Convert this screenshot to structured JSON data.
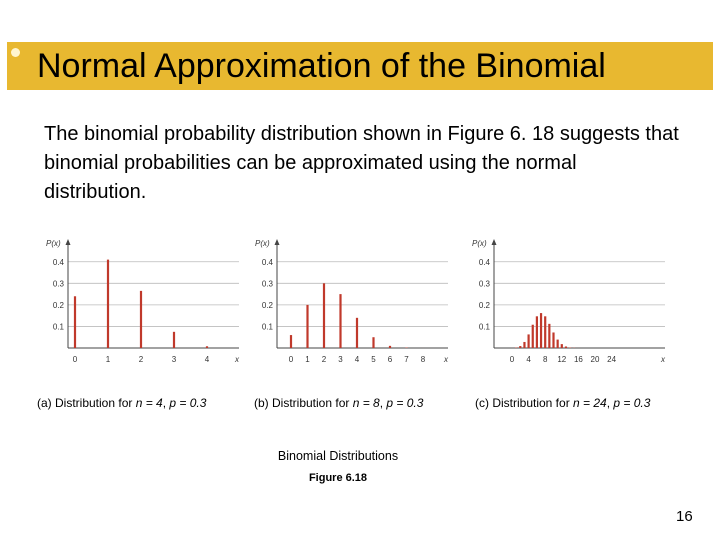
{
  "slide": {
    "title": "Normal Approximation of the Binomial",
    "intro": "The binomial probability distribution shown in Figure 6. 18 suggests that binomial probabilities can be approximated using the normal distribution.",
    "figure_title": "Binomial Distributions",
    "figure_number": "Figure 6.18",
    "page_number": "16",
    "accent_color": "#e8b830"
  },
  "chart_data": [
    {
      "type": "bar",
      "ylabel": "P(x)",
      "xlabel": "x",
      "ylim": [
        0,
        0.45
      ],
      "yticks": [
        "0.1",
        "0.2",
        "0.3",
        "0.4"
      ],
      "x": [
        0,
        1,
        2,
        3,
        4
      ],
      "values": [
        0.24,
        0.41,
        0.265,
        0.075,
        0.008
      ],
      "xticks": [
        "0",
        "1",
        "2",
        "3",
        "4"
      ],
      "caption_prefix": "(a) Distribution for ",
      "caption_n": "n = 4",
      "caption_p": "p = 0.3"
    },
    {
      "type": "bar",
      "ylabel": "P(x)",
      "xlabel": "x",
      "ylim": [
        0,
        0.45
      ],
      "yticks": [
        "0.1",
        "0.2",
        "0.3",
        "0.4"
      ],
      "x": [
        0,
        1,
        2,
        3,
        4,
        5,
        6,
        7,
        8
      ],
      "values": [
        0.06,
        0.2,
        0.3,
        0.25,
        0.14,
        0.05,
        0.01,
        0.002,
        0.0001
      ],
      "xticks": [
        "0",
        "1",
        "2",
        "3",
        "4",
        "5",
        "6",
        "7",
        "8"
      ],
      "caption_prefix": "(b) Distribution for ",
      "caption_n": "n = 8",
      "caption_p": "p = 0.3"
    },
    {
      "type": "bar",
      "ylabel": "P(x)",
      "xlabel": "x",
      "ylim": [
        0,
        0.45
      ],
      "yticks": [
        "0.1",
        "0.2",
        "0.3",
        "0.4"
      ],
      "x": [
        0,
        1,
        2,
        3,
        4,
        5,
        6,
        7,
        8,
        9,
        10,
        11,
        12,
        13,
        14,
        15,
        16,
        17,
        18,
        19,
        20,
        21,
        22,
        23,
        24
      ],
      "values": [
        0.0002,
        0.002,
        0.009,
        0.028,
        0.063,
        0.108,
        0.147,
        0.162,
        0.147,
        0.112,
        0.072,
        0.039,
        0.018,
        0.007,
        0.002,
        0.001,
        0.0002,
        0,
        0,
        0,
        0,
        0,
        0,
        0,
        0
      ],
      "xticks": [
        "0",
        "4",
        "8",
        "12",
        "16",
        "20",
        "24"
      ],
      "xtick_values": [
        0,
        4,
        8,
        12,
        16,
        20,
        24
      ],
      "caption_prefix": "(c) Distribution for ",
      "caption_n": "n = 24",
      "caption_p": "p = 0.3"
    }
  ]
}
